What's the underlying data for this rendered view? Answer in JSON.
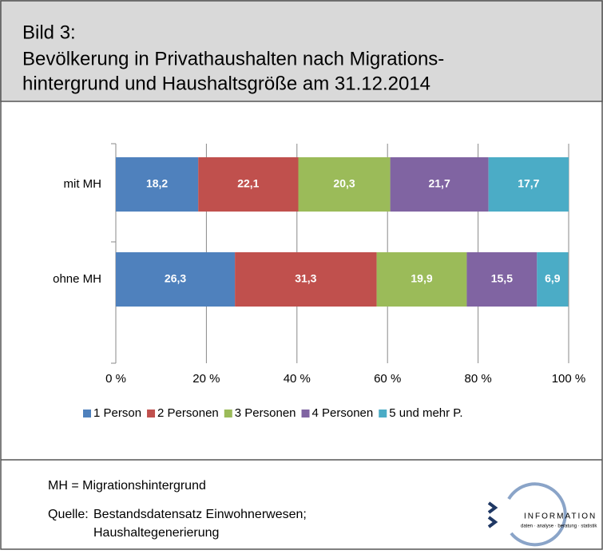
{
  "chart_data": {
    "type": "stacked-barh",
    "title": [
      "Bild 3:",
      "Bevölkerung in Privathaushalten nach Migrations-",
      "hintergrund und Haushaltsgröße am 31.12.2014"
    ],
    "categories": [
      "mit MH",
      "ohne MH"
    ],
    "series": [
      {
        "name": "1 Person",
        "color": "#4f81bd",
        "values": [
          18.2,
          26.3
        ],
        "value_labels": [
          "18,2",
          "26,3"
        ]
      },
      {
        "name": "2 Personen",
        "color": "#c0504d",
        "values": [
          22.1,
          31.3
        ],
        "value_labels": [
          "22,1",
          "31,3"
        ]
      },
      {
        "name": "3 Personen",
        "color": "#9bbb59",
        "values": [
          20.3,
          19.9
        ],
        "value_labels": [
          "20,3",
          "19,9"
        ]
      },
      {
        "name": "4 Personen",
        "color": "#8064a2",
        "values": [
          21.7,
          15.5
        ],
        "value_labels": [
          "21,7",
          "15,5"
        ]
      },
      {
        "name": "5 und mehr P.",
        "color": "#4bacc6",
        "values": [
          17.7,
          6.9
        ],
        "value_labels": [
          "17,7",
          "6,9"
        ]
      }
    ],
    "xlim": [
      0,
      100
    ],
    "xticks": [
      {
        "value": 0,
        "label": "0 %"
      },
      {
        "value": 20,
        "label": "20 %"
      },
      {
        "value": 40,
        "label": "40 %"
      },
      {
        "value": 60,
        "label": "60 %"
      },
      {
        "value": 80,
        "label": "80 %"
      },
      {
        "value": 100,
        "label": "100 %"
      }
    ],
    "grid": true,
    "legend": "bottom",
    "notes": [
      "MH = Migrationshintergrund",
      "Quelle:",
      "Bestandsdatensatz Einwohnerwesen;",
      "Haushaltegenerierung"
    ],
    "logo": {
      "text": "INFORMATION",
      "tagline": "daten · analyse · beratung · statistik"
    }
  }
}
